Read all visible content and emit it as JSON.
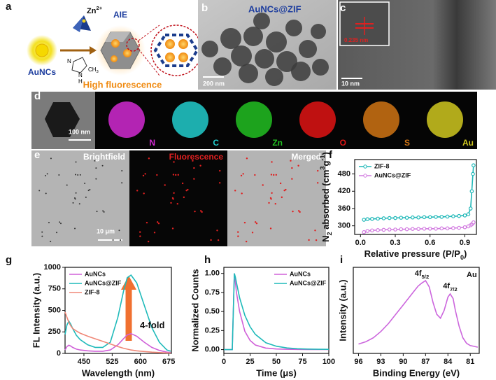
{
  "panel_labels": [
    "a",
    "b",
    "c",
    "d",
    "e",
    "f",
    "g",
    "h",
    "i"
  ],
  "panel_a": {
    "ncs": "AuNCs",
    "zn": [
      {
        "text": "Zn"
      },
      {
        "text": "2+",
        "shift": "super"
      }
    ],
    "aie": "AIE",
    "caption": "High fluorescence",
    "ring_n1": "N",
    "ring_n2": "N",
    "ring_h": "H",
    "methyl": [
      {
        "text": "CH"
      },
      {
        "text": "3",
        "shift": "sub"
      }
    ]
  },
  "panel_b": {
    "title": "AuNCs@ZIF",
    "scale": "200 nm"
  },
  "panel_c": {
    "spacing": "0.235 nm",
    "scale": "10 nm"
  },
  "panel_d": {
    "scale": "100 nm",
    "elements": [
      "N",
      "C",
      "Zn",
      "O",
      "S",
      "Au"
    ],
    "element_colors": [
      "#d22ad2",
      "#22cccc",
      "#22c022",
      "#e01414",
      "#d07414",
      "#d0c820"
    ]
  },
  "panel_e": {
    "channels": [
      "Brightfield",
      "Fluorescence",
      "Merged"
    ],
    "scale": "10 μm",
    "channel_colors": [
      "#ffffff",
      "#e02020",
      "#ffffff"
    ]
  },
  "chart_data": [
    {
      "type": "line",
      "markers": true,
      "legend": "upper left",
      "xlabel": [
        {
          "text": "Relative pressure (P/P"
        },
        {
          "text": "0",
          "shift": "sub"
        },
        {
          "text": ")"
        }
      ],
      "ylabel": [
        {
          "text": "N"
        },
        {
          "text": "2",
          "shift": "sub"
        },
        {
          "text": " absorbed (cm"
        },
        {
          "text": "3",
          "shift": "super"
        },
        {
          "text": "g"
        },
        {
          "text": "-1",
          "shift": "super"
        },
        {
          "text": ")"
        }
      ],
      "xlim": [
        -0.05,
        1.0
      ],
      "ylim": [
        270,
        530
      ],
      "xticks": [
        {
          "value": 0,
          "label": "0.0"
        },
        0.3,
        0.6,
        0.9
      ],
      "yticks": [
        300,
        360,
        420,
        480
      ],
      "x": [
        0.03,
        0.06,
        0.1,
        0.15,
        0.2,
        0.25,
        0.3,
        0.35,
        0.4,
        0.45,
        0.5,
        0.55,
        0.6,
        0.65,
        0.7,
        0.75,
        0.8,
        0.85,
        0.9,
        0.93,
        0.95,
        0.96,
        0.97,
        0.975
      ],
      "series": [
        {
          "name": "ZIF-8",
          "color": "#1fb8b8",
          "values": [
            321,
            323,
            324,
            325,
            326,
            327,
            327,
            328,
            328,
            329,
            329,
            330,
            330,
            331,
            331,
            332,
            333,
            334,
            336,
            340,
            360,
            420,
            480,
            510
          ]
        },
        {
          "name": "AuNCs@ZIF",
          "color": "#d27be0",
          "values": [
            278,
            282,
            284,
            285,
            286,
            287,
            287,
            288,
            288,
            289,
            289,
            290,
            290,
            290,
            291,
            291,
            292,
            293,
            295,
            298,
            302,
            305,
            309,
            312
          ]
        }
      ]
    },
    {
      "type": "line",
      "markers": false,
      "legend": "upper left",
      "xlabel": "Wavelength (nm)",
      "ylabel": "FL Intensity (a.u.)",
      "annotations": [
        {
          "text": [
            {
              "text": "4-fold"
            }
          ],
          "color": "#f07030"
        }
      ],
      "xlim": [
        400,
        682
      ],
      "ylim": [
        0,
        1000
      ],
      "xticks": [
        450,
        525,
        600,
        675
      ],
      "yticks": [
        0,
        250,
        500,
        750,
        1000
      ],
      "x": [
        400,
        405,
        410,
        415,
        420,
        430,
        440,
        460,
        480,
        500,
        520,
        540,
        555,
        565,
        575,
        590,
        610,
        630,
        650,
        670,
        680
      ],
      "series": [
        {
          "name": "AuNCs",
          "color": "#d060d8",
          "values": [
            40,
            80,
            95,
            85,
            70,
            50,
            40,
            30,
            25,
            25,
            40,
            100,
            170,
            215,
            230,
            200,
            130,
            70,
            35,
            15,
            10
          ]
        },
        {
          "name": "AuNCs@ZIF",
          "color": "#1fbaba",
          "values": [
            220,
            330,
            375,
            340,
            290,
            210,
            160,
            100,
            70,
            70,
            130,
            420,
            720,
            880,
            910,
            820,
            560,
            300,
            130,
            40,
            25
          ]
        },
        {
          "name": "ZIF-8",
          "color": "#f08878",
          "values": [
            480,
            420,
            360,
            320,
            290,
            260,
            235,
            200,
            170,
            140,
            110,
            80,
            60,
            50,
            40,
            30,
            22,
            15,
            10,
            6,
            5
          ]
        }
      ]
    },
    {
      "type": "line",
      "markers": false,
      "legend": "upper right",
      "xlabel": "Time (μs)",
      "ylabel": "Normalized Counts",
      "xlim": [
        0,
        100
      ],
      "ylim": [
        -0.05,
        1.08
      ],
      "xticks": [
        0,
        25,
        50,
        75,
        100
      ],
      "yticks": [
        {
          "value": 0,
          "label": "0.00"
        },
        {
          "value": 0.25,
          "label": "0.25"
        },
        {
          "value": 0.5,
          "label": "0.50"
        },
        {
          "value": 0.75,
          "label": "0.75"
        },
        {
          "value": 1,
          "label": "1.00"
        }
      ],
      "x": [
        0,
        5,
        8,
        9,
        10,
        11,
        12,
        15,
        20,
        25,
        30,
        40,
        50,
        60,
        70,
        80,
        90,
        100
      ],
      "series": [
        {
          "name": "AuNCs",
          "color": "#d060d8",
          "values": [
            0,
            0,
            0,
            0.5,
            1.0,
            0.88,
            0.75,
            0.5,
            0.24,
            0.12,
            0.06,
            0.02,
            0.008,
            0.004,
            0.002,
            0.001,
            0.001,
            0.001
          ]
        },
        {
          "name": "AuNCs@ZIF",
          "color": "#1fbaba",
          "values": [
            0,
            0,
            0,
            0.5,
            1.0,
            0.95,
            0.88,
            0.68,
            0.45,
            0.3,
            0.2,
            0.09,
            0.045,
            0.022,
            0.012,
            0.007,
            0.004,
            0.003
          ]
        }
      ]
    },
    {
      "type": "line",
      "markers": false,
      "xlabel": "Binding Energy (eV)",
      "ylabel": "Intensity (a.u.)",
      "annotations": [
        {
          "text": [
            {
              "text": "4f"
            },
            {
              "text": "5/2",
              "shift": "sub"
            }
          ]
        },
        {
          "text": [
            {
              "text": "4f"
            },
            {
              "text": "7/2",
              "shift": "sub"
            }
          ]
        },
        {
          "text": [
            {
              "text": "Au"
            }
          ]
        }
      ],
      "xlim": [
        96.7,
        79.8
      ],
      "ylim": [
        0,
        1.1
      ],
      "xticks": [
        96,
        93,
        90,
        87,
        84,
        81
      ],
      "x": [
        96,
        95,
        94,
        93,
        92,
        91,
        90,
        89,
        88.5,
        88,
        87.5,
        87,
        86.5,
        86,
        85.5,
        85,
        84.5,
        84,
        83.7,
        83.3,
        83,
        82.5,
        82,
        81.5,
        81,
        80.5,
        80
      ],
      "series": [
        {
          "name": "Au 4f",
          "color": "#cc66dd",
          "values": [
            0.12,
            0.15,
            0.2,
            0.28,
            0.38,
            0.5,
            0.62,
            0.74,
            0.8,
            0.86,
            0.9,
            0.93,
            0.85,
            0.65,
            0.5,
            0.45,
            0.55,
            0.72,
            0.76,
            0.7,
            0.55,
            0.35,
            0.2,
            0.13,
            0.1,
            0.09,
            0.08
          ]
        }
      ]
    }
  ]
}
